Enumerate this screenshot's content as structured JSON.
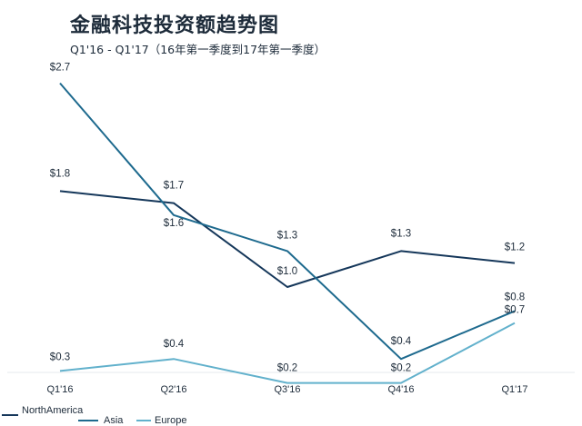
{
  "chart_data": {
    "type": "line",
    "title": "金融科技投资额趋势图",
    "subtitle": "Q1'16 - Q1'17（16年第一季度到17年第一季度）",
    "categories": [
      "Q1'16",
      "Q2'16",
      "Q3'16",
      "Q4'16",
      "Q1'17"
    ],
    "ylim": [
      0,
      3
    ],
    "grid": false,
    "legend": "bottom-left",
    "series": [
      {
        "name": "NorthAmerica",
        "color": "#15375a",
        "values": [
          1.8,
          1.7,
          1.0,
          1.3,
          1.2
        ],
        "labels": [
          "$1.8",
          "$1.7",
          "$1.0",
          "$1.3",
          "$1.2"
        ]
      },
      {
        "name": "Asia",
        "color": "#1e6a8e",
        "values": [
          2.7,
          1.6,
          1.3,
          0.4,
          0.8
        ],
        "labels": [
          "$2.7",
          "$1.6",
          "$1.3",
          "$0.4",
          "$0.8"
        ]
      },
      {
        "name": "Europe",
        "color": "#62b1cc",
        "values": [
          0.3,
          0.4,
          0.2,
          0.2,
          0.7
        ],
        "labels": [
          "$0.3",
          "$0.4",
          "$0.2",
          "$0.2",
          "$0.7"
        ]
      }
    ]
  }
}
